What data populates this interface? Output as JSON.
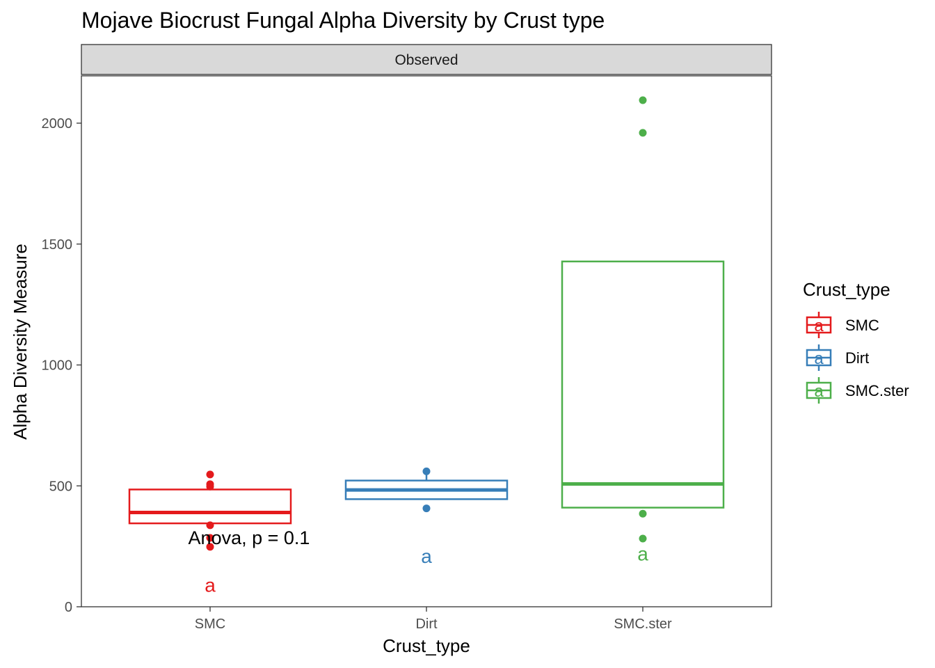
{
  "chart_data": {
    "type": "box",
    "title": "Mojave Biocrust Fungal Alpha Diversity by Crust type",
    "facet_label": "Observed",
    "xlabel": "Crust_type",
    "ylabel": "Alpha Diversity Measure",
    "ylim": [
      0,
      2200
    ],
    "yticks": [
      0,
      500,
      1000,
      1500,
      2000
    ],
    "categories": [
      "SMC",
      "Dirt",
      "SMC.ster"
    ],
    "legend": {
      "title": "Crust_type",
      "position": "right"
    },
    "grid": false,
    "annotation": {
      "text": "Anova, p = 0.1",
      "x_category": "SMC",
      "y": 285
    },
    "series": [
      {
        "name": "SMC",
        "color": "#e41a1c",
        "box": {
          "lower_whisker": 345,
          "q1": 345,
          "median": 390,
          "q3": 485,
          "upper_whisker": 485
        },
        "points": [
          547,
          507,
          497,
          337,
          285,
          248
        ],
        "letter": "a",
        "letter_y": 90
      },
      {
        "name": "Dirt",
        "color": "#377eb8",
        "box": {
          "lower_whisker": 445,
          "q1": 445,
          "median": 483,
          "q3": 522,
          "upper_whisker": 558
        },
        "points": [
          560,
          407
        ],
        "letter": "a",
        "letter_y": 210
      },
      {
        "name": "SMC.ster",
        "color": "#4daf4a",
        "box": {
          "lower_whisker": 410,
          "q1": 410,
          "median": 508,
          "q3": 1428,
          "upper_whisker": 1428
        },
        "points": [
          2095,
          1960,
          385,
          282
        ],
        "letter": "a",
        "letter_y": 220
      }
    ]
  }
}
